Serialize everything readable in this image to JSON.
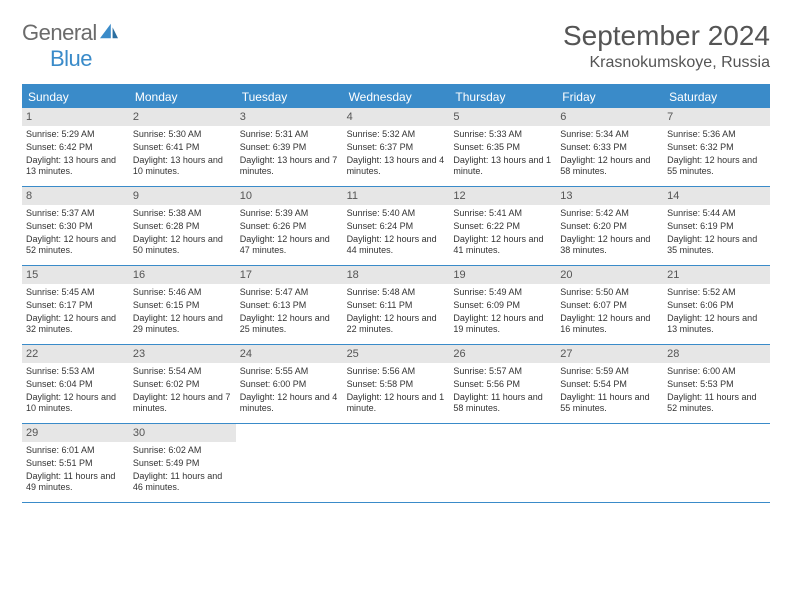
{
  "logo": {
    "general": "General",
    "blue": "Blue"
  },
  "title": "September 2024",
  "location": "Krasnokumskoye, Russia",
  "day_names": [
    "Sunday",
    "Monday",
    "Tuesday",
    "Wednesday",
    "Thursday",
    "Friday",
    "Saturday"
  ],
  "colors": {
    "accent": "#3a8bc9",
    "header_gray": "#e6e6e6",
    "text": "#333333",
    "title_text": "#555555",
    "background": "#ffffff"
  },
  "days": [
    {
      "n": "1",
      "sr": "Sunrise: 5:29 AM",
      "ss": "Sunset: 6:42 PM",
      "dl": "Daylight: 13 hours and 13 minutes."
    },
    {
      "n": "2",
      "sr": "Sunrise: 5:30 AM",
      "ss": "Sunset: 6:41 PM",
      "dl": "Daylight: 13 hours and 10 minutes."
    },
    {
      "n": "3",
      "sr": "Sunrise: 5:31 AM",
      "ss": "Sunset: 6:39 PM",
      "dl": "Daylight: 13 hours and 7 minutes."
    },
    {
      "n": "4",
      "sr": "Sunrise: 5:32 AM",
      "ss": "Sunset: 6:37 PM",
      "dl": "Daylight: 13 hours and 4 minutes."
    },
    {
      "n": "5",
      "sr": "Sunrise: 5:33 AM",
      "ss": "Sunset: 6:35 PM",
      "dl": "Daylight: 13 hours and 1 minute."
    },
    {
      "n": "6",
      "sr": "Sunrise: 5:34 AM",
      "ss": "Sunset: 6:33 PM",
      "dl": "Daylight: 12 hours and 58 minutes."
    },
    {
      "n": "7",
      "sr": "Sunrise: 5:36 AM",
      "ss": "Sunset: 6:32 PM",
      "dl": "Daylight: 12 hours and 55 minutes."
    },
    {
      "n": "8",
      "sr": "Sunrise: 5:37 AM",
      "ss": "Sunset: 6:30 PM",
      "dl": "Daylight: 12 hours and 52 minutes."
    },
    {
      "n": "9",
      "sr": "Sunrise: 5:38 AM",
      "ss": "Sunset: 6:28 PM",
      "dl": "Daylight: 12 hours and 50 minutes."
    },
    {
      "n": "10",
      "sr": "Sunrise: 5:39 AM",
      "ss": "Sunset: 6:26 PM",
      "dl": "Daylight: 12 hours and 47 minutes."
    },
    {
      "n": "11",
      "sr": "Sunrise: 5:40 AM",
      "ss": "Sunset: 6:24 PM",
      "dl": "Daylight: 12 hours and 44 minutes."
    },
    {
      "n": "12",
      "sr": "Sunrise: 5:41 AM",
      "ss": "Sunset: 6:22 PM",
      "dl": "Daylight: 12 hours and 41 minutes."
    },
    {
      "n": "13",
      "sr": "Sunrise: 5:42 AM",
      "ss": "Sunset: 6:20 PM",
      "dl": "Daylight: 12 hours and 38 minutes."
    },
    {
      "n": "14",
      "sr": "Sunrise: 5:44 AM",
      "ss": "Sunset: 6:19 PM",
      "dl": "Daylight: 12 hours and 35 minutes."
    },
    {
      "n": "15",
      "sr": "Sunrise: 5:45 AM",
      "ss": "Sunset: 6:17 PM",
      "dl": "Daylight: 12 hours and 32 minutes."
    },
    {
      "n": "16",
      "sr": "Sunrise: 5:46 AM",
      "ss": "Sunset: 6:15 PM",
      "dl": "Daylight: 12 hours and 29 minutes."
    },
    {
      "n": "17",
      "sr": "Sunrise: 5:47 AM",
      "ss": "Sunset: 6:13 PM",
      "dl": "Daylight: 12 hours and 25 minutes."
    },
    {
      "n": "18",
      "sr": "Sunrise: 5:48 AM",
      "ss": "Sunset: 6:11 PM",
      "dl": "Daylight: 12 hours and 22 minutes."
    },
    {
      "n": "19",
      "sr": "Sunrise: 5:49 AM",
      "ss": "Sunset: 6:09 PM",
      "dl": "Daylight: 12 hours and 19 minutes."
    },
    {
      "n": "20",
      "sr": "Sunrise: 5:50 AM",
      "ss": "Sunset: 6:07 PM",
      "dl": "Daylight: 12 hours and 16 minutes."
    },
    {
      "n": "21",
      "sr": "Sunrise: 5:52 AM",
      "ss": "Sunset: 6:06 PM",
      "dl": "Daylight: 12 hours and 13 minutes."
    },
    {
      "n": "22",
      "sr": "Sunrise: 5:53 AM",
      "ss": "Sunset: 6:04 PM",
      "dl": "Daylight: 12 hours and 10 minutes."
    },
    {
      "n": "23",
      "sr": "Sunrise: 5:54 AM",
      "ss": "Sunset: 6:02 PM",
      "dl": "Daylight: 12 hours and 7 minutes."
    },
    {
      "n": "24",
      "sr": "Sunrise: 5:55 AM",
      "ss": "Sunset: 6:00 PM",
      "dl": "Daylight: 12 hours and 4 minutes."
    },
    {
      "n": "25",
      "sr": "Sunrise: 5:56 AM",
      "ss": "Sunset: 5:58 PM",
      "dl": "Daylight: 12 hours and 1 minute."
    },
    {
      "n": "26",
      "sr": "Sunrise: 5:57 AM",
      "ss": "Sunset: 5:56 PM",
      "dl": "Daylight: 11 hours and 58 minutes."
    },
    {
      "n": "27",
      "sr": "Sunrise: 5:59 AM",
      "ss": "Sunset: 5:54 PM",
      "dl": "Daylight: 11 hours and 55 minutes."
    },
    {
      "n": "28",
      "sr": "Sunrise: 6:00 AM",
      "ss": "Sunset: 5:53 PM",
      "dl": "Daylight: 11 hours and 52 minutes."
    },
    {
      "n": "29",
      "sr": "Sunrise: 6:01 AM",
      "ss": "Sunset: 5:51 PM",
      "dl": "Daylight: 11 hours and 49 minutes."
    },
    {
      "n": "30",
      "sr": "Sunrise: 6:02 AM",
      "ss": "Sunset: 5:49 PM",
      "dl": "Daylight: 11 hours and 46 minutes."
    }
  ]
}
